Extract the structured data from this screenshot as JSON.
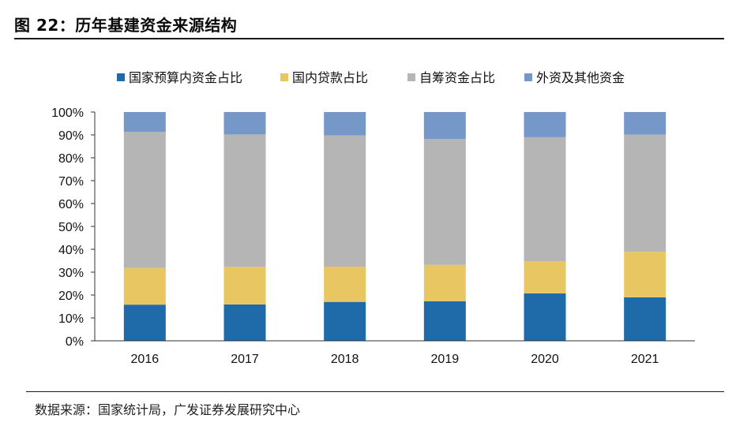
{
  "figure": {
    "title": "图 22：历年基建资金来源结构",
    "source": "数据来源：国家统计局，广发证券发展研究中心"
  },
  "chart_data": {
    "type": "bar",
    "stacked": true,
    "categories": [
      "2016",
      "2017",
      "2018",
      "2019",
      "2020",
      "2021"
    ],
    "series": [
      {
        "name": "国家预算内资金占比",
        "color": "#1f6aa8",
        "values": [
          15.8,
          15.9,
          17.0,
          17.3,
          20.7,
          19.0
        ]
      },
      {
        "name": "国内贷款占比",
        "color": "#e8c762",
        "values": [
          16.0,
          16.4,
          15.4,
          15.9,
          14.1,
          19.9
        ]
      },
      {
        "name": "自筹资金占比",
        "color": "#b5b5b5",
        "values": [
          59.5,
          57.9,
          57.4,
          55.0,
          54.2,
          51.2
        ]
      },
      {
        "name": "外资及其他资金",
        "color": "#7698c9",
        "values": [
          8.7,
          9.8,
          10.2,
          11.8,
          11.0,
          9.9
        ]
      }
    ],
    "ylim": [
      0,
      100
    ],
    "yticks": [
      "0%",
      "10%",
      "20%",
      "30%",
      "40%",
      "50%",
      "60%",
      "70%",
      "80%",
      "90%",
      "100%"
    ],
    "legend_position": "top",
    "grid": false
  }
}
